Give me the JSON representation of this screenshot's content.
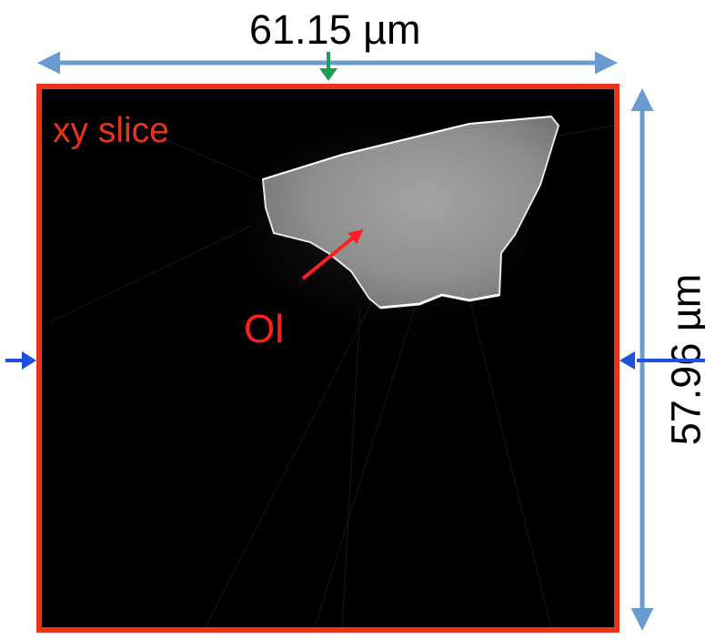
{
  "figure": {
    "slice_label": "xy slice",
    "mineral_label": "Ol",
    "width_label": "61.15 µm",
    "height_label": "57.96 µm"
  },
  "colors": {
    "frame": "#e8341c",
    "dimension_arrow": "#6a9bd0",
    "marker_blue": "#1f4fe0",
    "marker_green": "#1d9e57",
    "pointer": "#ff1f1f",
    "background": "#000000",
    "grain": "#9c9c9c"
  }
}
